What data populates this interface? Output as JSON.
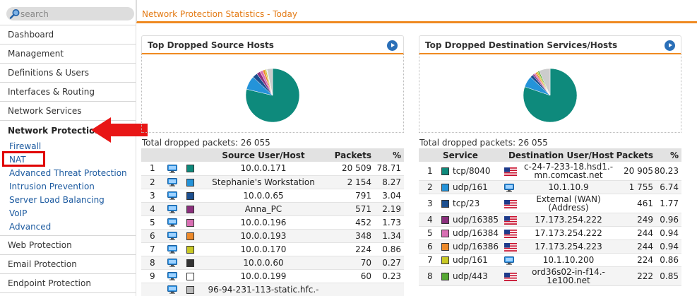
{
  "search": {
    "placeholder": "search"
  },
  "sidebar": {
    "items_top": [
      "Dashboard",
      "Management",
      "Definitions & Users",
      "Interfaces & Routing",
      "Network Services"
    ],
    "active": "Network Protection",
    "sub_items": [
      "Firewall",
      "NAT",
      "Advanced Threat Protection",
      "Intrusion Prevention",
      "Server Load Balancing",
      "VoIP",
      "Advanced"
    ],
    "items_bottom": [
      "Web Protection",
      "Email Protection",
      "Endpoint Protection"
    ]
  },
  "page": {
    "title": "Network Protection Statistics - Today"
  },
  "left_panel": {
    "title": "Top Dropped Source Hosts",
    "total": "Total dropped packets: 26 055",
    "headers": [
      "",
      "",
      "",
      "Source User/Host",
      "Packets",
      "%"
    ],
    "rows": [
      {
        "n": "1",
        "color": "#0e8a7c",
        "host": "10.0.0.171",
        "packets": "20 509",
        "pct": "78.71"
      },
      {
        "n": "2",
        "color": "#2493d9",
        "host": "Stephanie's Workstation",
        "packets": "2 154",
        "pct": "8.27"
      },
      {
        "n": "3",
        "color": "#1d4f8f",
        "host": "10.0.0.65",
        "packets": "791",
        "pct": "3.04"
      },
      {
        "n": "4",
        "color": "#8b2f7d",
        "host": "Anna_PC",
        "packets": "571",
        "pct": "2.19"
      },
      {
        "n": "5",
        "color": "#d86fb3",
        "host": "10.0.0.196",
        "packets": "452",
        "pct": "1.73"
      },
      {
        "n": "6",
        "color": "#ee8a2a",
        "host": "10.0.0.193",
        "packets": "348",
        "pct": "1.34"
      },
      {
        "n": "7",
        "color": "#c9c925",
        "host": "10.0.0.170",
        "packets": "224",
        "pct": "0.86"
      },
      {
        "n": "8",
        "color": "#333333",
        "host": "10.0.0.60",
        "packets": "70",
        "pct": "0.27"
      },
      {
        "n": "9",
        "color": "#ffffff",
        "host": "10.0.0.199",
        "packets": "60",
        "pct": "0.23"
      },
      {
        "n": "",
        "color": "#bbbbbb",
        "host": "96-94-231-113-static.hfc.-",
        "packets": "",
        "pct": ""
      }
    ]
  },
  "right_panel": {
    "title": "Top Dropped Destination Services/Hosts",
    "total": "Total dropped packets: 26 055",
    "headers": [
      "",
      "Service",
      "Destination User/Host",
      "Packets",
      "%"
    ],
    "rows": [
      {
        "n": "1",
        "color": "#0e8a7c",
        "service": "tcp/8040",
        "icon": "flag",
        "host1": "c-24-7-233-18.hsd1.-",
        "host2": "mn.comcast.net",
        "packets": "20 905",
        "pct": "80.23"
      },
      {
        "n": "2",
        "color": "#2493d9",
        "service": "udp/161",
        "icon": "pc",
        "host1": "10.1.10.9",
        "host2": "",
        "packets": "1 755",
        "pct": "6.74"
      },
      {
        "n": "3",
        "color": "#1d4f8f",
        "service": "tcp/23",
        "icon": "flag",
        "host1": "External (WAN)",
        "host2": "(Address)",
        "packets": "461",
        "pct": "1.77"
      },
      {
        "n": "4",
        "color": "#8b2f7d",
        "service": "udp/16385",
        "icon": "flag",
        "host1": "17.173.254.222",
        "host2": "",
        "packets": "249",
        "pct": "0.96"
      },
      {
        "n": "5",
        "color": "#d86fb3",
        "service": "udp/16384",
        "icon": "flag",
        "host1": "17.173.254.222",
        "host2": "",
        "packets": "244",
        "pct": "0.94"
      },
      {
        "n": "6",
        "color": "#ee8a2a",
        "service": "udp/16386",
        "icon": "flag",
        "host1": "17.173.254.223",
        "host2": "",
        "packets": "244",
        "pct": "0.94"
      },
      {
        "n": "7",
        "color": "#c9c925",
        "service": "udp/161",
        "icon": "pc",
        "host1": "10.1.10.200",
        "host2": "",
        "packets": "224",
        "pct": "0.86"
      },
      {
        "n": "8",
        "color": "#55a832",
        "service": "udp/443",
        "icon": "flag",
        "host1": "ord36s02-in-f14.-",
        "host2": "1e100.net",
        "packets": "222",
        "pct": "0.85"
      }
    ]
  },
  "colors": {
    "accent": "#ef8a22",
    "link": "#1d5ba0",
    "highlight": "#e00000"
  }
}
